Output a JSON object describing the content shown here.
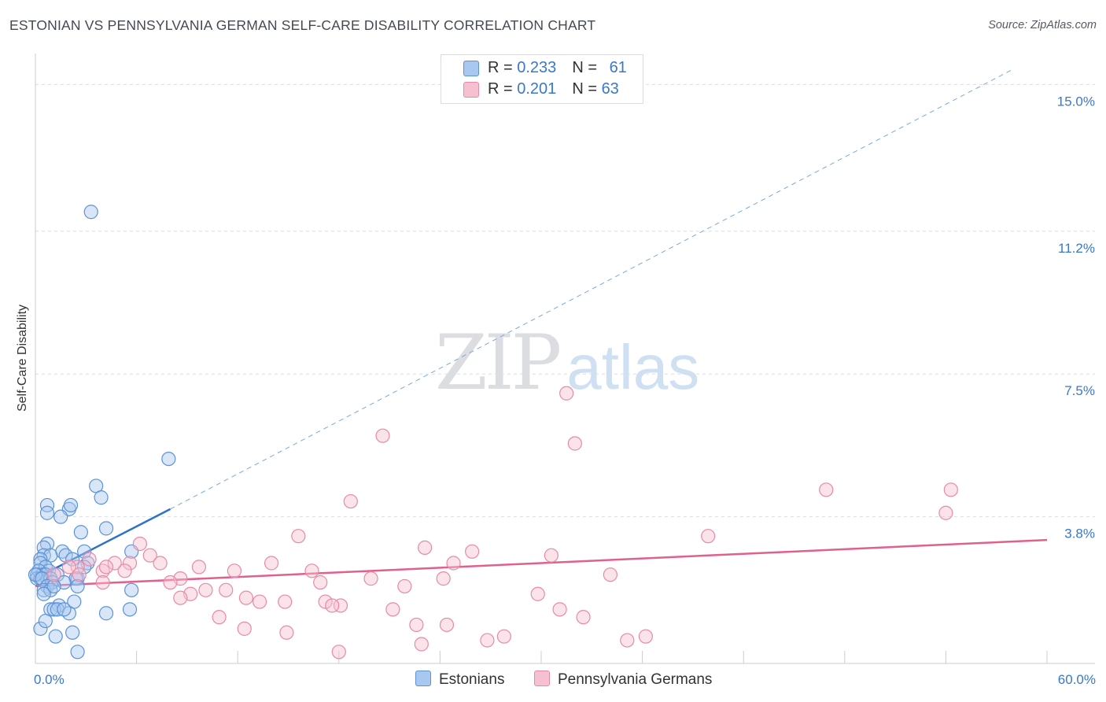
{
  "title": "ESTONIAN VS PENNSYLVANIA GERMAN SELF-CARE DISABILITY CORRELATION CHART",
  "source": "Source: ZipAtlas.com",
  "watermark": {
    "zip": "ZIP",
    "atlas": "atlas"
  },
  "legend": {
    "estonians": {
      "r_label": "R = ",
      "r_value": "0.233",
      "n_label": "N = ",
      "n_value": "61"
    },
    "penn_germans": {
      "r_label": "R = ",
      "r_value": "0.201",
      "n_label": "N = ",
      "n_value": "63"
    }
  },
  "series_labels": {
    "estonians": "Estonians",
    "penn_germans": "Pennsylvania Germans"
  },
  "colors": {
    "blue_fill": "#a9c8ef",
    "blue_stroke": "#5b93d6",
    "blue_line": "#2c72c9",
    "pink_fill": "#f6c0d0",
    "pink_stroke": "#e889a8",
    "pink_line": "#e0608e",
    "axis_text": "#3a78c9",
    "grid": "#dcdde2"
  },
  "chart_data": {
    "type": "scatter",
    "title": "ESTONIAN VS PENNSYLVANIA GERMAN SELF-CARE DISABILITY CORRELATION CHART",
    "xlabel": "",
    "ylabel": "Self-Care Disability",
    "xlim": [
      0,
      60
    ],
    "ylim": [
      0,
      15.6
    ],
    "x_tick_labels": [
      "0.0%",
      "60.0%"
    ],
    "y_ticks": [
      3.8,
      7.5,
      11.2,
      15.0
    ],
    "y_tick_labels": [
      "3.8%",
      "7.5%",
      "11.2%",
      "15.0%"
    ],
    "series": [
      {
        "name": "Estonians",
        "r": 0.233,
        "n": 61,
        "trend_solid": [
          [
            0.0,
            2.2
          ],
          [
            8.0,
            4.0
          ]
        ],
        "trend_dashed": [
          [
            8.0,
            4.0
          ],
          [
            58.0,
            15.4
          ]
        ],
        "points": [
          [
            3.3,
            11.7
          ],
          [
            7.9,
            5.3
          ],
          [
            3.6,
            4.6
          ],
          [
            3.9,
            4.3
          ],
          [
            0.7,
            4.1
          ],
          [
            2.0,
            4.0
          ],
          [
            2.1,
            4.1
          ],
          [
            0.7,
            3.9
          ],
          [
            1.5,
            3.8
          ],
          [
            4.2,
            3.5
          ],
          [
            2.7,
            3.4
          ],
          [
            0.7,
            3.1
          ],
          [
            0.5,
            3.0
          ],
          [
            5.7,
            2.9
          ],
          [
            1.6,
            2.9
          ],
          [
            2.9,
            2.9
          ],
          [
            1.8,
            2.8
          ],
          [
            0.5,
            2.8
          ],
          [
            0.9,
            2.8
          ],
          [
            2.2,
            2.7
          ],
          [
            3.1,
            2.6
          ],
          [
            2.9,
            2.5
          ],
          [
            0.3,
            2.7
          ],
          [
            0.3,
            2.6
          ],
          [
            0.6,
            2.5
          ],
          [
            0.8,
            2.4
          ],
          [
            0.2,
            2.4
          ],
          [
            0.4,
            2.3
          ],
          [
            0.1,
            2.3
          ],
          [
            0.6,
            2.3
          ],
          [
            1.3,
            2.3
          ],
          [
            0.1,
            2.2
          ],
          [
            0.3,
            2.2
          ],
          [
            0.9,
            2.2
          ],
          [
            2.5,
            2.2
          ],
          [
            2.4,
            2.2
          ],
          [
            0.0,
            2.3
          ],
          [
            0.4,
            2.2
          ],
          [
            1.0,
            2.1
          ],
          [
            1.7,
            2.1
          ],
          [
            2.5,
            2.0
          ],
          [
            0.7,
            2.0
          ],
          [
            0.5,
            1.9
          ],
          [
            0.9,
            1.9
          ],
          [
            0.5,
            1.8
          ],
          [
            5.7,
            1.9
          ],
          [
            2.3,
            1.6
          ],
          [
            1.4,
            1.5
          ],
          [
            0.9,
            1.4
          ],
          [
            1.1,
            1.4
          ],
          [
            1.3,
            1.4
          ],
          [
            2.0,
            1.3
          ],
          [
            4.2,
            1.3
          ],
          [
            5.6,
            1.4
          ],
          [
            2.2,
            0.8
          ],
          [
            1.2,
            0.7
          ],
          [
            2.5,
            0.3
          ],
          [
            0.3,
            0.9
          ],
          [
            1.7,
            1.4
          ],
          [
            0.6,
            1.1
          ],
          [
            1.1,
            2.0
          ]
        ]
      },
      {
        "name": "Pennsylvania Germans",
        "r": 0.201,
        "n": 63,
        "trend_solid": [
          [
            0.0,
            2.0
          ],
          [
            60.0,
            3.2
          ]
        ],
        "points": [
          [
            31.5,
            7.0
          ],
          [
            20.6,
            5.9
          ],
          [
            32.0,
            5.7
          ],
          [
            46.9,
            4.5
          ],
          [
            54.3,
            4.5
          ],
          [
            18.7,
            4.2
          ],
          [
            54.0,
            3.9
          ],
          [
            15.6,
            3.3
          ],
          [
            39.9,
            3.3
          ],
          [
            6.2,
            3.1
          ],
          [
            23.1,
            3.0
          ],
          [
            25.9,
            2.9
          ],
          [
            6.8,
            2.8
          ],
          [
            30.6,
            2.8
          ],
          [
            3.2,
            2.7
          ],
          [
            4.7,
            2.6
          ],
          [
            5.6,
            2.6
          ],
          [
            7.4,
            2.6
          ],
          [
            14.0,
            2.6
          ],
          [
            24.8,
            2.6
          ],
          [
            2.5,
            2.5
          ],
          [
            4.0,
            2.4
          ],
          [
            5.3,
            2.4
          ],
          [
            9.7,
            2.5
          ],
          [
            11.8,
            2.4
          ],
          [
            16.4,
            2.4
          ],
          [
            2.0,
            2.5
          ],
          [
            4.2,
            2.5
          ],
          [
            1.1,
            2.3
          ],
          [
            8.6,
            2.2
          ],
          [
            19.9,
            2.2
          ],
          [
            24.2,
            2.2
          ],
          [
            34.1,
            2.3
          ],
          [
            8.0,
            2.1
          ],
          [
            16.9,
            2.1
          ],
          [
            21.9,
            2.0
          ],
          [
            4.0,
            2.1
          ],
          [
            2.6,
            2.3
          ],
          [
            10.1,
            1.9
          ],
          [
            11.3,
            1.9
          ],
          [
            9.2,
            1.8
          ],
          [
            8.6,
            1.7
          ],
          [
            12.5,
            1.7
          ],
          [
            13.3,
            1.6
          ],
          [
            14.8,
            1.6
          ],
          [
            17.2,
            1.6
          ],
          [
            18.1,
            1.5
          ],
          [
            17.6,
            1.5
          ],
          [
            21.2,
            1.4
          ],
          [
            29.8,
            1.8
          ],
          [
            31.1,
            1.4
          ],
          [
            32.5,
            1.2
          ],
          [
            10.9,
            1.2
          ],
          [
            22.6,
            1.0
          ],
          [
            24.4,
            1.0
          ],
          [
            12.4,
            0.9
          ],
          [
            14.9,
            0.8
          ],
          [
            27.8,
            0.7
          ],
          [
            35.1,
            0.6
          ],
          [
            36.2,
            0.7
          ],
          [
            22.9,
            0.5
          ],
          [
            26.8,
            0.6
          ],
          [
            18.0,
            0.3
          ]
        ]
      }
    ]
  }
}
